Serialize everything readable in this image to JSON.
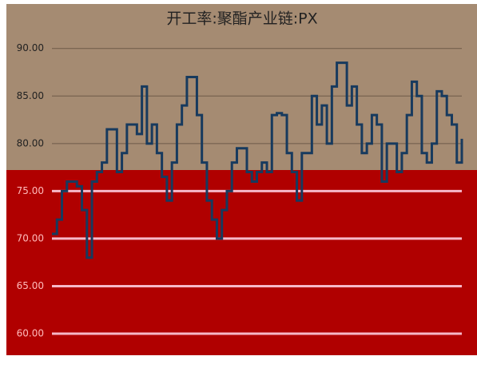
{
  "chart_data": {
    "type": "line",
    "title": "开工率:聚酯产业链:PX",
    "series": [
      {
        "name": "PX",
        "color": "#173a5e",
        "values": [
          70.5,
          72,
          75,
          76,
          76,
          75.5,
          73,
          68,
          76,
          77,
          78,
          81.5,
          81.5,
          77,
          79,
          82,
          82,
          81,
          86,
          80,
          82,
          79,
          76.5,
          74,
          78,
          82,
          84,
          87,
          87,
          83,
          78,
          74,
          72,
          70,
          73,
          75,
          78,
          79.5,
          79.5,
          77,
          76,
          77,
          78,
          77,
          83,
          83.2,
          83,
          79,
          77,
          74,
          79,
          79,
          85,
          82,
          84,
          80,
          86,
          88.5,
          88.5,
          84,
          86,
          82,
          79,
          80,
          83,
          82,
          76,
          80,
          80,
          77,
          79,
          83,
          86.5,
          85,
          79,
          78,
          80,
          85.5,
          85,
          83,
          82,
          78,
          80.5
        ]
      }
    ],
    "ylim": [
      60,
      93
    ],
    "yticks": [
      {
        "value": 60,
        "label": "60.00"
      },
      {
        "value": 65,
        "label": "65.00"
      },
      {
        "value": 70,
        "label": "70.00"
      },
      {
        "value": 75,
        "label": "75.00"
      },
      {
        "value": 80,
        "label": "80.00"
      },
      {
        "value": 85,
        "label": "85.00"
      },
      {
        "value": 90,
        "label": "90.00"
      }
    ],
    "grid": true
  }
}
